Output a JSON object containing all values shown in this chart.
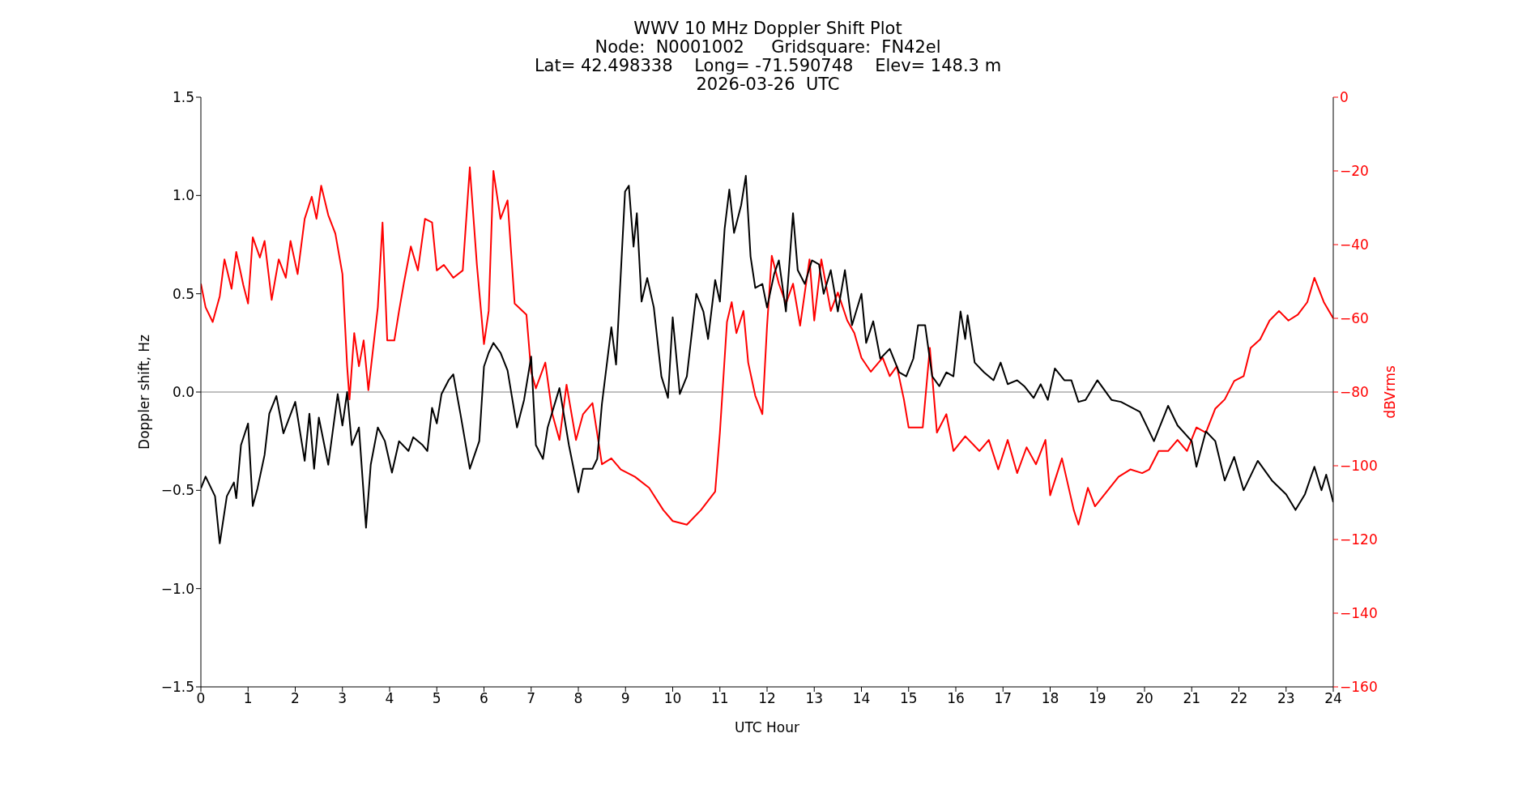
{
  "chart_data": {
    "type": "line",
    "title": "WWV 10 MHz Doppler Shift Plot",
    "subtitle": "Node:  N0001002     Gridsquare:  FN42el\nLat= 42.498338    Long= -71.590748    Elev= 148.3 m\n2026-03-26  UTC",
    "xlabel": "UTC Hour",
    "ylabel": "Doppler shift, Hz",
    "y2label": "dBVrms",
    "xlim": [
      0,
      24
    ],
    "xticks": [
      0,
      1,
      2,
      3,
      4,
      5,
      6,
      7,
      8,
      9,
      10,
      11,
      12,
      13,
      14,
      15,
      16,
      17,
      18,
      19,
      20,
      21,
      22,
      23,
      24
    ],
    "ylim": [
      -1.5,
      1.5
    ],
    "yticks": [
      {
        "value": -1.5,
        "label": "−1.5"
      },
      {
        "value": -1.0,
        "label": "−1.0"
      },
      {
        "value": -0.5,
        "label": "−0.5"
      },
      {
        "value": 0,
        "label": "0.0"
      },
      {
        "value": 0.5,
        "label": "0.5"
      },
      {
        "value": 1.0,
        "label": "1.0"
      },
      {
        "value": 1.5,
        "label": "1.5"
      }
    ],
    "y2lim": [
      -160,
      0
    ],
    "y2ticks": [
      {
        "value": -160,
        "label": "−160"
      },
      {
        "value": -140,
        "label": "−140"
      },
      {
        "value": -120,
        "label": "−120"
      },
      {
        "value": -100,
        "label": "−100"
      },
      {
        "value": -80,
        "label": "−80"
      },
      {
        "value": -60,
        "label": "−60"
      },
      {
        "value": -40,
        "label": "−40"
      },
      {
        "value": -20,
        "label": "−20"
      },
      {
        "value": 0,
        "label": "0"
      }
    ],
    "grid": false,
    "legend": false,
    "marker": "none",
    "line_style": "solid",
    "ref_lines": [
      {
        "axis": "y",
        "value": 0,
        "color": "#808080"
      }
    ],
    "series": [
      {
        "color": "#ff0000",
        "axis": "y2",
        "x": [
          0,
          0.1,
          0.25,
          0.4,
          0.5,
          0.65,
          0.75,
          0.9,
          1.0,
          1.1,
          1.25,
          1.35,
          1.5,
          1.65,
          1.8,
          1.9,
          2.05,
          2.2,
          2.35,
          2.45,
          2.55,
          2.7,
          2.85,
          3.0,
          3.1,
          3.15,
          3.25,
          3.35,
          3.45,
          3.55,
          3.75,
          3.85,
          3.95,
          4.1,
          4.2,
          4.3,
          4.45,
          4.6,
          4.75,
          4.9,
          5.0,
          5.15,
          5.35,
          5.55,
          5.7,
          5.85,
          6.0,
          6.1,
          6.2,
          6.35,
          6.5,
          6.65,
          6.9,
          7.0,
          7.1,
          7.3,
          7.45,
          7.6,
          7.75,
          7.95,
          8.1,
          8.3,
          8.5,
          8.7,
          8.9,
          9.2,
          9.5,
          9.8,
          10.0,
          10.3,
          10.6,
          10.9,
          11.0,
          11.15,
          11.25,
          11.35,
          11.5,
          11.6,
          11.75,
          11.9,
          12.0,
          12.1,
          12.25,
          12.4,
          12.55,
          12.7,
          12.9,
          13.0,
          13.15,
          13.35,
          13.5,
          13.7,
          13.85,
          14.0,
          14.2,
          14.45,
          14.6,
          14.75,
          14.9,
          15.0,
          15.3,
          15.45,
          15.6,
          15.8,
          15.95,
          16.2,
          16.5,
          16.7,
          16.9,
          17.1,
          17.3,
          17.5,
          17.7,
          17.9,
          18.0,
          18.25,
          18.5,
          18.6,
          18.8,
          18.95,
          19.2,
          19.45,
          19.7,
          19.95,
          20.1,
          20.3,
          20.5,
          20.7,
          20.9,
          21.1,
          21.3,
          21.5,
          21.7,
          21.9,
          22.1,
          22.25,
          22.45,
          22.65,
          22.85,
          23.05,
          23.25,
          23.45,
          23.6,
          23.8,
          24
        ],
        "values": [
          -50.6,
          -57,
          -61,
          -54,
          -44,
          -52,
          -42,
          -51,
          -56,
          -38,
          -43.5,
          -39,
          -55,
          -44,
          -49,
          -39,
          -48,
          -33,
          -27,
          -33,
          -24,
          -32,
          -37,
          -48,
          -73,
          -82,
          -64,
          -73,
          -66,
          -79.5,
          -57,
          -34,
          -66,
          -66,
          -58,
          -50.6,
          -40.5,
          -47,
          -33,
          -34,
          -47,
          -45.5,
          -49,
          -47,
          -19,
          -45.5,
          -67,
          -58,
          -20,
          -33,
          -28,
          -56,
          -59,
          -74.5,
          -79,
          -72,
          -86,
          -93,
          -78,
          -93,
          -86,
          -83,
          -99.6,
          -98,
          -101,
          -103,
          -106,
          -112,
          -115,
          -116,
          -112,
          -107,
          -91,
          -61,
          -55.6,
          -64,
          -58,
          -72,
          -81,
          -86,
          -62,
          -43,
          -50.6,
          -56,
          -50.6,
          -62,
          -44,
          -60.6,
          -44,
          -58,
          -53,
          -60.6,
          -64,
          -70.7,
          -74.5,
          -70.7,
          -75.7,
          -73,
          -82,
          -89.6,
          -89.6,
          -68,
          -91,
          -86,
          -96,
          -92,
          -96,
          -93,
          -101,
          -93,
          -102,
          -95,
          -99.6,
          -93,
          -108,
          -98,
          -112,
          -116,
          -106,
          -111,
          -107,
          -103,
          -101,
          -102,
          -101,
          -96,
          -96,
          -93,
          -96,
          -89.6,
          -91,
          -84.5,
          -82,
          -77,
          -75.7,
          -68,
          -65.7,
          -60.6,
          -58,
          -60.6,
          -59,
          -55.6,
          -49,
          -55.6,
          -60
        ]
      },
      {
        "color": "#000000",
        "axis": "y",
        "x": [
          0,
          0.1,
          0.3,
          0.4,
          0.55,
          0.7,
          0.75,
          0.85,
          1.0,
          1.1,
          1.2,
          1.35,
          1.45,
          1.6,
          1.75,
          2.0,
          2.2,
          2.3,
          2.4,
          2.5,
          2.7,
          2.9,
          3.0,
          3.1,
          3.2,
          3.35,
          3.5,
          3.6,
          3.75,
          3.9,
          4.05,
          4.2,
          4.4,
          4.5,
          4.7,
          4.8,
          4.9,
          5.0,
          5.1,
          5.25,
          5.35,
          5.5,
          5.7,
          5.9,
          6.0,
          6.1,
          6.2,
          6.35,
          6.5,
          6.7,
          6.85,
          7.0,
          7.1,
          7.25,
          7.35,
          7.6,
          7.8,
          8.0,
          8.1,
          8.3,
          8.4,
          8.5,
          8.7,
          8.8,
          8.99,
          9.07,
          9.17,
          9.24,
          9.34,
          9.46,
          9.6,
          9.76,
          9.9,
          10.0,
          10.15,
          10.3,
          10.5,
          10.65,
          10.75,
          10.9,
          11.0,
          11.1,
          11.2,
          11.3,
          11.45,
          11.55,
          11.65,
          11.75,
          11.9,
          12.0,
          12.15,
          12.25,
          12.4,
          12.55,
          12.65,
          12.8,
          12.95,
          13.1,
          13.2,
          13.35,
          13.5,
          13.65,
          13.8,
          14.0,
          14.1,
          14.25,
          14.4,
          14.6,
          14.8,
          14.95,
          15.1,
          15.2,
          15.35,
          15.5,
          15.65,
          15.8,
          15.95,
          16.1,
          16.2,
          16.25,
          16.4,
          16.6,
          16.8,
          16.95,
          17.1,
          17.3,
          17.45,
          17.65,
          17.8,
          17.95,
          18.1,
          18.3,
          18.45,
          18.6,
          18.75,
          19.0,
          19.3,
          19.5,
          19.9,
          20.2,
          20.5,
          20.7,
          21.0,
          21.1,
          21.3,
          21.5,
          21.7,
          21.9,
          22.1,
          22.4,
          22.7,
          23.0,
          23.2,
          23.4,
          23.6,
          23.75,
          23.85,
          24
        ],
        "values": [
          -0.49,
          -0.43,
          -0.53,
          -0.77,
          -0.53,
          -0.46,
          -0.54,
          -0.27,
          -0.16,
          -0.58,
          -0.49,
          -0.32,
          -0.11,
          -0.02,
          -0.21,
          -0.05,
          -0.35,
          -0.11,
          -0.39,
          -0.13,
          -0.37,
          -0.01,
          -0.17,
          0.0,
          -0.27,
          -0.18,
          -0.69,
          -0.37,
          -0.18,
          -0.25,
          -0.41,
          -0.25,
          -0.3,
          -0.23,
          -0.27,
          -0.3,
          -0.08,
          -0.16,
          -0.01,
          0.06,
          0.09,
          -0.11,
          -0.39,
          -0.25,
          0.13,
          0.2,
          0.25,
          0.2,
          0.11,
          -0.18,
          -0.04,
          0.18,
          -0.27,
          -0.34,
          -0.18,
          0.02,
          -0.27,
          -0.51,
          -0.39,
          -0.39,
          -0.34,
          -0.06,
          0.33,
          0.14,
          1.02,
          1.05,
          0.74,
          0.91,
          0.46,
          0.58,
          0.43,
          0.08,
          -0.03,
          0.38,
          -0.01,
          0.08,
          0.5,
          0.41,
          0.27,
          0.57,
          0.46,
          0.83,
          1.03,
          0.81,
          0.95,
          1.1,
          0.69,
          0.53,
          0.55,
          0.43,
          0.6,
          0.67,
          0.41,
          0.91,
          0.62,
          0.55,
          0.67,
          0.65,
          0.5,
          0.62,
          0.41,
          0.62,
          0.34,
          0.5,
          0.25,
          0.36,
          0.17,
          0.22,
          0.1,
          0.08,
          0.17,
          0.34,
          0.34,
          0.08,
          0.03,
          0.1,
          0.08,
          0.41,
          0.27,
          0.39,
          0.15,
          0.1,
          0.06,
          0.15,
          0.04,
          0.06,
          0.03,
          -0.03,
          0.04,
          -0.04,
          0.12,
          0.06,
          0.06,
          -0.05,
          -0.04,
          0.06,
          -0.04,
          -0.05,
          -0.1,
          -0.25,
          -0.07,
          -0.17,
          -0.25,
          -0.38,
          -0.2,
          -0.25,
          -0.45,
          -0.33,
          -0.5,
          -0.35,
          -0.45,
          -0.52,
          -0.6,
          -0.52,
          -0.38,
          -0.5,
          -0.42,
          -0.56
        ]
      }
    ]
  }
}
